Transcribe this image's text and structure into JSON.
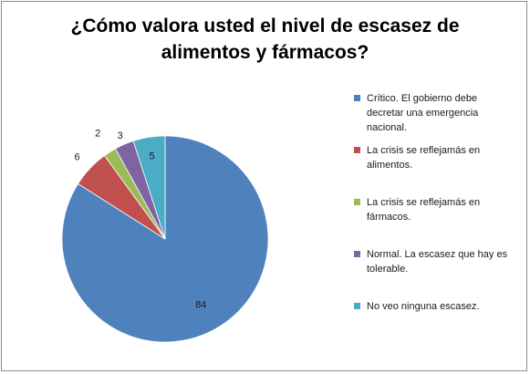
{
  "chart_data": {
    "type": "pie",
    "title_lines": [
      "¿Cómo valora usted el nivel de escasez de",
      "alimentos y fármacos?"
    ],
    "categories": [
      "Crítico. El gobierno debe decretar una emergencia nacional.",
      "La crisis se reflejamás en alimentos.",
      "La crisis se reflejamás en fármacos.",
      "Normal. La escasez que hay es tolerable.",
      "No veo ninguna escasez."
    ],
    "values": [
      84,
      6,
      2,
      3,
      5
    ],
    "data_labels": [
      "84",
      "6",
      "2",
      "3",
      "5"
    ],
    "colors": [
      "#4f81bd",
      "#c0504d",
      "#9bbb59",
      "#8064a2",
      "#4bacc6"
    ],
    "legend_position": "right",
    "start_angle": "top, clockwise"
  }
}
